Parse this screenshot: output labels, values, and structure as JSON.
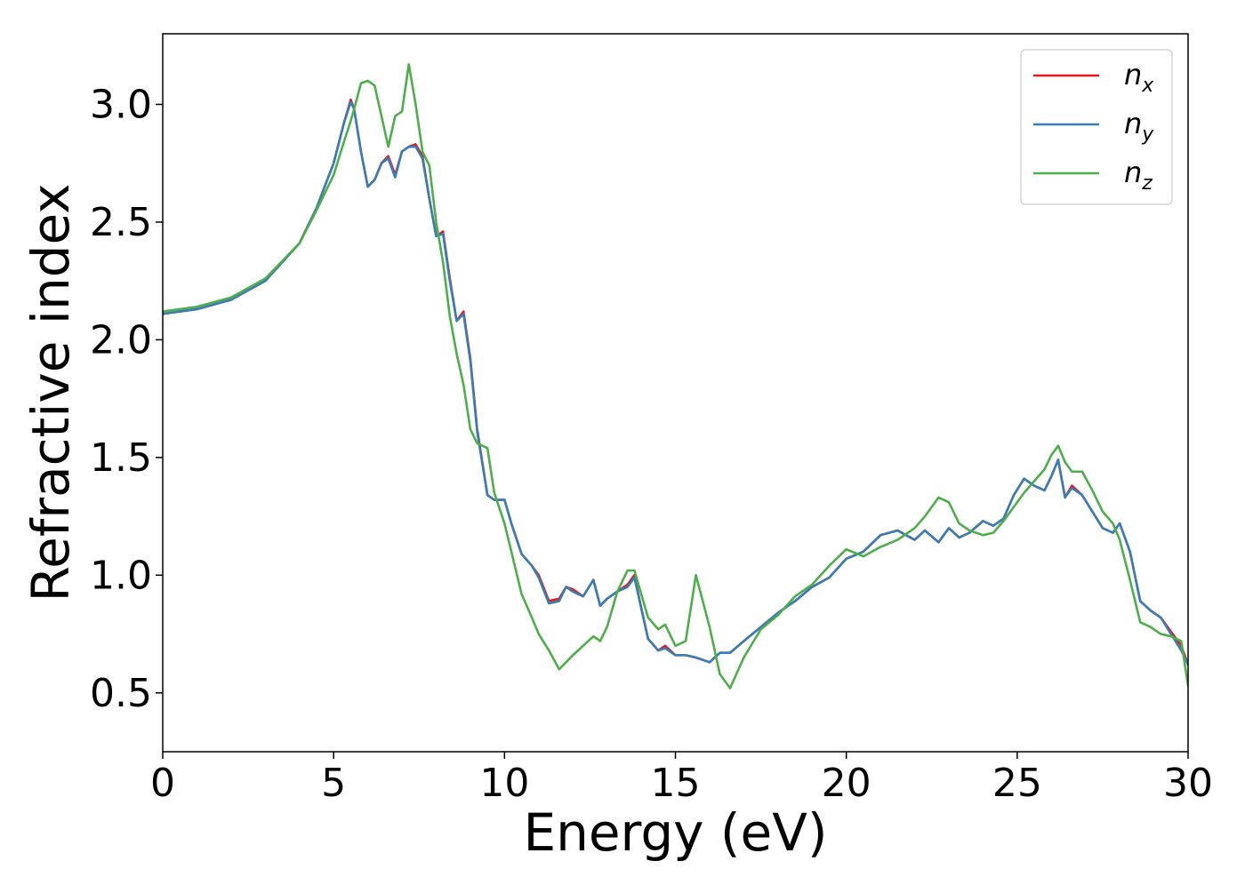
{
  "chart_data": {
    "type": "line",
    "title": "",
    "xlabel": "Energy (eV)",
    "ylabel": "Refractive index",
    "xlim": [
      0,
      30
    ],
    "ylim": [
      0.25,
      3.3
    ],
    "xticks": [
      0,
      5,
      10,
      15,
      20,
      25,
      30
    ],
    "yticks": [
      0.5,
      1.0,
      1.5,
      2.0,
      2.5,
      3.0
    ],
    "xtick_labels": [
      "0",
      "5",
      "10",
      "15",
      "20",
      "25",
      "30"
    ],
    "ytick_labels": [
      "0.5",
      "1.0",
      "1.5",
      "2.0",
      "2.5",
      "3.0"
    ],
    "grid": false,
    "legend_position": "top-right",
    "series": [
      {
        "name": "n_x",
        "label_base": "n",
        "label_sub": "x",
        "color": "#e41a1c",
        "x": [
          0,
          1,
          2,
          3,
          4,
          4.5,
          5,
          5.3,
          5.5,
          5.6,
          5.8,
          6.0,
          6.2,
          6.4,
          6.6,
          6.8,
          7.0,
          7.2,
          7.4,
          7.6,
          7.8,
          8.0,
          8.2,
          8.4,
          8.6,
          8.8,
          9.0,
          9.2,
          9.5,
          9.7,
          10.0,
          10.2,
          10.5,
          10.8,
          11.0,
          11.3,
          11.6,
          11.8,
          12.0,
          12.3,
          12.6,
          12.8,
          13.0,
          13.3,
          13.6,
          13.8,
          14.0,
          14.2,
          14.5,
          14.7,
          15.0,
          15.3,
          15.6,
          16.0,
          16.3,
          16.6,
          17.0,
          17.5,
          18.0,
          18.5,
          19.0,
          19.5,
          20.0,
          20.5,
          21.0,
          21.5,
          22.0,
          22.3,
          22.7,
          23.0,
          23.3,
          23.6,
          24.0,
          24.3,
          24.6,
          24.9,
          25.2,
          25.5,
          25.8,
          26.0,
          26.2,
          26.4,
          26.6,
          26.9,
          27.2,
          27.5,
          27.8,
          28.0,
          28.3,
          28.6,
          28.9,
          29.2,
          29.5,
          29.8,
          30.0
        ],
        "y": [
          2.11,
          2.13,
          2.17,
          2.25,
          2.41,
          2.56,
          2.75,
          2.92,
          3.02,
          2.98,
          2.8,
          2.65,
          2.68,
          2.75,
          2.78,
          2.7,
          2.8,
          2.82,
          2.83,
          2.78,
          2.6,
          2.44,
          2.46,
          2.26,
          2.08,
          2.12,
          1.92,
          1.62,
          1.34,
          1.32,
          1.32,
          1.22,
          1.09,
          1.04,
          1.0,
          0.89,
          0.9,
          0.95,
          0.94,
          0.91,
          0.98,
          0.87,
          0.9,
          0.93,
          0.96,
          1.0,
          0.86,
          0.73,
          0.68,
          0.7,
          0.66,
          0.66,
          0.65,
          0.63,
          0.67,
          0.67,
          0.72,
          0.78,
          0.84,
          0.89,
          0.95,
          0.99,
          1.07,
          1.1,
          1.17,
          1.19,
          1.15,
          1.19,
          1.14,
          1.2,
          1.16,
          1.18,
          1.23,
          1.21,
          1.24,
          1.34,
          1.41,
          1.38,
          1.36,
          1.42,
          1.49,
          1.33,
          1.38,
          1.34,
          1.27,
          1.2,
          1.18,
          1.22,
          1.1,
          0.89,
          0.85,
          0.82,
          0.76,
          0.7,
          0.62
        ]
      },
      {
        "name": "n_y",
        "label_base": "n",
        "label_sub": "y",
        "color": "#377eb8",
        "x": [
          0,
          1,
          2,
          3,
          4,
          4.5,
          5,
          5.3,
          5.5,
          5.6,
          5.8,
          6.0,
          6.2,
          6.4,
          6.6,
          6.8,
          7.0,
          7.2,
          7.4,
          7.6,
          7.8,
          8.0,
          8.2,
          8.4,
          8.6,
          8.8,
          9.0,
          9.2,
          9.5,
          9.7,
          10.0,
          10.2,
          10.5,
          10.8,
          11.0,
          11.3,
          11.6,
          11.8,
          12.0,
          12.3,
          12.6,
          12.8,
          13.0,
          13.3,
          13.6,
          13.8,
          14.0,
          14.2,
          14.5,
          14.7,
          15.0,
          15.3,
          15.6,
          16.0,
          16.3,
          16.6,
          17.0,
          17.5,
          18.0,
          18.5,
          19.0,
          19.5,
          20.0,
          20.5,
          21.0,
          21.5,
          22.0,
          22.3,
          22.7,
          23.0,
          23.3,
          23.6,
          24.0,
          24.3,
          24.6,
          24.9,
          25.2,
          25.5,
          25.8,
          26.0,
          26.2,
          26.4,
          26.6,
          26.9,
          27.2,
          27.5,
          27.8,
          28.0,
          28.3,
          28.6,
          28.9,
          29.2,
          29.5,
          29.8,
          30.0
        ],
        "y": [
          2.11,
          2.13,
          2.17,
          2.25,
          2.41,
          2.56,
          2.75,
          2.92,
          3.01,
          2.98,
          2.8,
          2.65,
          2.68,
          2.75,
          2.77,
          2.69,
          2.8,
          2.82,
          2.82,
          2.77,
          2.6,
          2.44,
          2.45,
          2.25,
          2.08,
          2.11,
          1.91,
          1.61,
          1.34,
          1.32,
          1.32,
          1.22,
          1.09,
          1.04,
          0.99,
          0.88,
          0.89,
          0.95,
          0.93,
          0.91,
          0.98,
          0.87,
          0.9,
          0.93,
          0.95,
          0.99,
          0.86,
          0.73,
          0.68,
          0.69,
          0.66,
          0.66,
          0.65,
          0.63,
          0.67,
          0.67,
          0.72,
          0.78,
          0.84,
          0.89,
          0.95,
          0.99,
          1.07,
          1.1,
          1.17,
          1.19,
          1.15,
          1.19,
          1.14,
          1.2,
          1.16,
          1.18,
          1.23,
          1.21,
          1.24,
          1.34,
          1.41,
          1.38,
          1.36,
          1.42,
          1.49,
          1.33,
          1.37,
          1.34,
          1.27,
          1.2,
          1.18,
          1.22,
          1.1,
          0.89,
          0.85,
          0.82,
          0.75,
          0.68,
          0.62
        ]
      },
      {
        "name": "n_z",
        "label_base": "n",
        "label_sub": "z",
        "color": "#4daf4a",
        "x": [
          0,
          1,
          2,
          3,
          4,
          4.5,
          5,
          5.3,
          5.5,
          5.6,
          5.8,
          6.0,
          6.2,
          6.4,
          6.6,
          6.8,
          7.0,
          7.2,
          7.4,
          7.6,
          7.8,
          8.0,
          8.2,
          8.4,
          8.6,
          8.8,
          9.0,
          9.2,
          9.5,
          9.7,
          10.0,
          10.2,
          10.5,
          10.8,
          11.0,
          11.3,
          11.6,
          11.8,
          12.0,
          12.3,
          12.6,
          12.8,
          13.0,
          13.3,
          13.6,
          13.8,
          14.0,
          14.2,
          14.5,
          14.7,
          15.0,
          15.3,
          15.6,
          16.0,
          16.3,
          16.6,
          17.0,
          17.5,
          18.0,
          18.5,
          19.0,
          19.5,
          20.0,
          20.5,
          21.0,
          21.5,
          22.0,
          22.3,
          22.7,
          23.0,
          23.3,
          23.6,
          24.0,
          24.3,
          24.6,
          24.9,
          25.2,
          25.5,
          25.8,
          26.0,
          26.2,
          26.4,
          26.6,
          26.9,
          27.2,
          27.5,
          27.8,
          28.0,
          28.3,
          28.6,
          28.9,
          29.2,
          29.5,
          29.8,
          30.0
        ],
        "y": [
          2.12,
          2.14,
          2.18,
          2.26,
          2.41,
          2.55,
          2.7,
          2.84,
          2.93,
          2.98,
          3.09,
          3.1,
          3.08,
          2.95,
          2.82,
          2.95,
          2.97,
          3.17,
          3.0,
          2.8,
          2.74,
          2.5,
          2.33,
          2.1,
          1.94,
          1.81,
          1.62,
          1.56,
          1.54,
          1.35,
          1.22,
          1.1,
          0.92,
          0.82,
          0.75,
          0.68,
          0.6,
          0.63,
          0.66,
          0.7,
          0.74,
          0.72,
          0.78,
          0.93,
          1.02,
          1.02,
          0.92,
          0.82,
          0.77,
          0.79,
          0.7,
          0.72,
          1.0,
          0.78,
          0.58,
          0.52,
          0.65,
          0.77,
          0.83,
          0.91,
          0.96,
          1.04,
          1.11,
          1.08,
          1.12,
          1.15,
          1.2,
          1.25,
          1.33,
          1.31,
          1.22,
          1.19,
          1.17,
          1.18,
          1.23,
          1.29,
          1.35,
          1.4,
          1.45,
          1.51,
          1.55,
          1.48,
          1.44,
          1.44,
          1.36,
          1.27,
          1.22,
          1.15,
          0.98,
          0.8,
          0.78,
          0.75,
          0.74,
          0.72,
          0.53
        ]
      }
    ]
  }
}
